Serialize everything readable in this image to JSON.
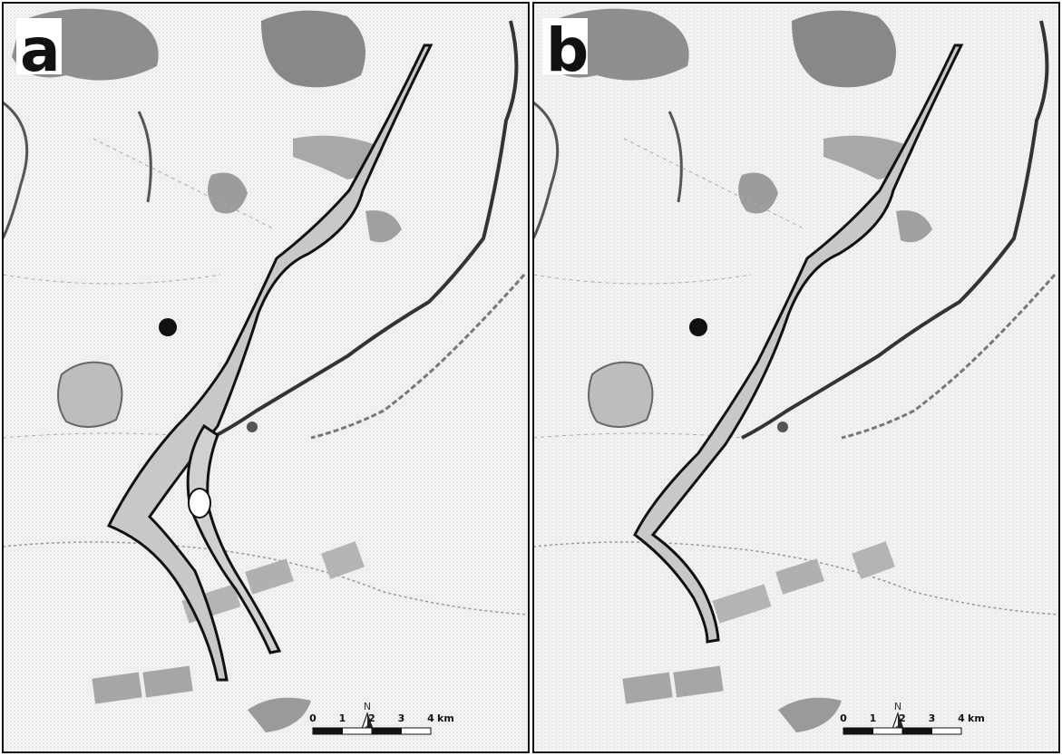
{
  "panels": [
    {
      "label": "a",
      "north_label": "N",
      "scale_bar": {
        "ticks": [
          0,
          1,
          2,
          3,
          4
        ],
        "unit": "km"
      }
    },
    {
      "label": "b",
      "north_label": "N",
      "scale_bar": {
        "ticks": [
          0,
          1,
          2,
          3,
          4
        ],
        "unit": "km"
      }
    }
  ]
}
